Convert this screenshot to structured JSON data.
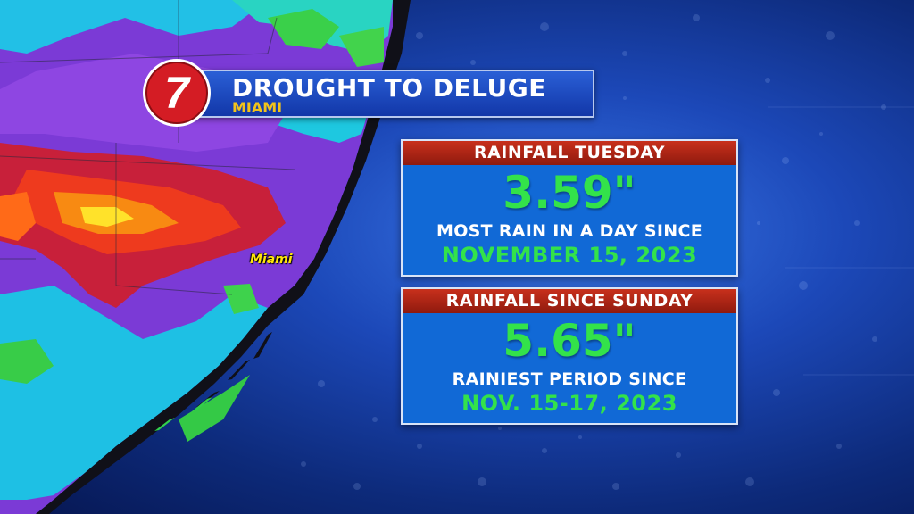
{
  "header": {
    "title": "DROUGHT TO DELUGE",
    "location": "MIAMI",
    "logo_text": "7"
  },
  "map": {
    "city_label": "Miami"
  },
  "panels": [
    {
      "heading": "RAINFALL TUESDAY",
      "amount": "3.59\"",
      "note": "MOST RAIN IN A DAY SINCE",
      "since": "NOVEMBER 15, 2023"
    },
    {
      "heading": "RAINFALL SINCE SUNDAY",
      "amount": "5.65\"",
      "note": "RAINIEST PERIOD SINCE",
      "since": "NOV. 15-17, 2023"
    }
  ],
  "colors": {
    "panel_head": "#b52616",
    "panel_body": "#1169d6",
    "value_green": "#33e24a",
    "location_gold": "#f2c41a",
    "city_yellow": "#ffe60a"
  }
}
